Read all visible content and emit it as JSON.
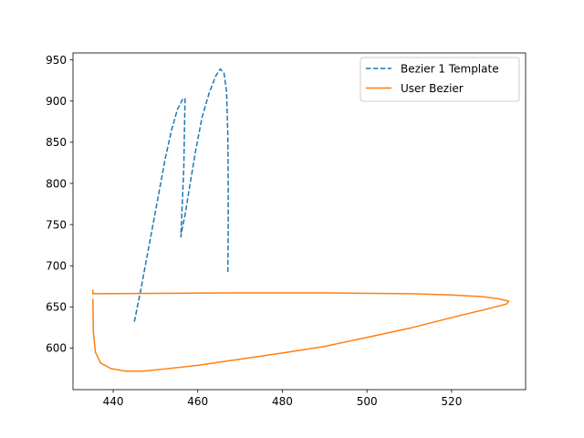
{
  "chart_data": {
    "type": "line",
    "title": "",
    "xlabel": "",
    "ylabel": "",
    "xlim": [
      430.5,
      537.5
    ],
    "ylim": [
      549.5,
      958.5
    ],
    "x_ticks": [
      440,
      460,
      480,
      500,
      520
    ],
    "y_ticks": [
      600,
      650,
      700,
      750,
      800,
      850,
      900,
      950
    ],
    "grid": false,
    "legend_position": "top-right",
    "series": [
      {
        "name": "Bezier 1 Template",
        "color": "#1f77b4",
        "linestyle": "dashed",
        "points": [
          [
            445.0,
            632
          ],
          [
            446.5,
            670
          ],
          [
            448.5,
            725
          ],
          [
            450.5,
            780
          ],
          [
            452.3,
            830
          ],
          [
            453.8,
            865
          ],
          [
            455.2,
            890
          ],
          [
            456.5,
            903
          ],
          [
            457.0,
            903
          ],
          [
            456.9,
            880
          ],
          [
            456.7,
            820
          ],
          [
            456.2,
            760
          ],
          [
            456.0,
            735
          ],
          [
            456.3,
            745
          ],
          [
            457.0,
            762
          ],
          [
            458.2,
            800
          ],
          [
            459.5,
            840
          ],
          [
            461.0,
            880
          ],
          [
            462.7,
            910
          ],
          [
            464.2,
            930
          ],
          [
            465.3,
            939
          ],
          [
            466.2,
            934
          ],
          [
            466.8,
            912
          ],
          [
            467.1,
            860
          ],
          [
            467.2,
            800
          ],
          [
            467.2,
            740
          ],
          [
            467.1,
            690
          ]
        ]
      },
      {
        "name": "User Bezier",
        "color": "#ff7f0e",
        "linestyle": "solid",
        "points": [
          [
            435.2,
            671
          ],
          [
            435.2,
            666
          ],
          [
            450,
            666.5
          ],
          [
            470,
            667
          ],
          [
            490,
            667
          ],
          [
            510,
            666
          ],
          [
            520,
            664.5
          ],
          [
            527,
            662.5
          ],
          [
            531,
            660
          ],
          [
            533.5,
            657
          ],
          [
            533,
            653.5
          ],
          [
            528,
            647
          ],
          [
            520,
            637
          ],
          [
            510,
            624
          ],
          [
            500,
            613
          ],
          [
            490,
            602
          ],
          [
            480,
            594
          ],
          [
            470,
            586.5
          ],
          [
            460,
            579
          ],
          [
            452,
            574.5
          ],
          [
            447,
            572
          ],
          [
            443,
            572
          ],
          [
            439.5,
            575
          ],
          [
            437,
            582
          ],
          [
            435.8,
            595
          ],
          [
            435.3,
            620
          ],
          [
            435.2,
            660
          ]
        ]
      }
    ]
  }
}
